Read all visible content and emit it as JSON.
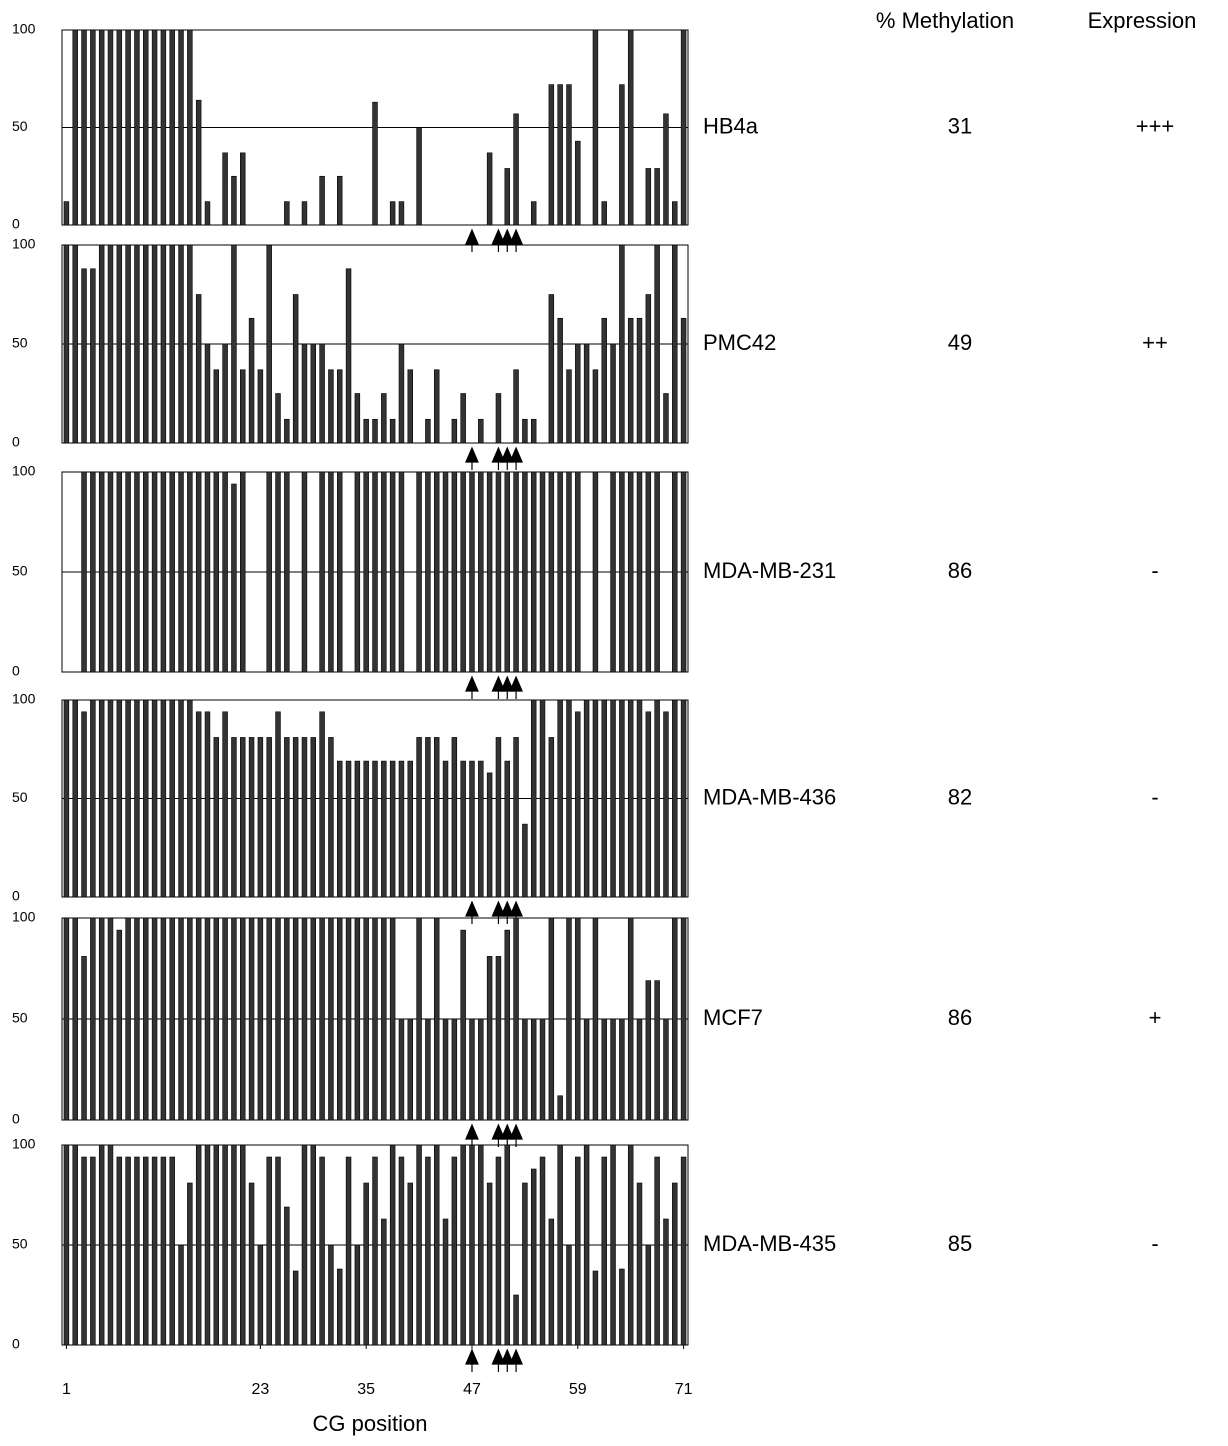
{
  "headers": {
    "methylation": "% Methylation",
    "expression": "Expression"
  },
  "chart_data": [
    {
      "type": "bar",
      "label": "HB4a",
      "methylation": 31,
      "expression": "+++",
      "x": [
        1,
        2,
        3,
        4,
        5,
        6,
        7,
        8,
        9,
        10,
        11,
        12,
        13,
        14,
        15,
        16,
        17,
        18,
        19,
        20,
        21,
        22,
        23,
        24,
        25,
        26,
        27,
        28,
        29,
        30,
        31,
        32,
        33,
        34,
        35,
        36,
        37,
        38,
        39,
        40,
        41,
        42,
        43,
        44,
        45,
        46,
        47,
        48,
        49,
        50,
        51,
        52,
        53,
        54,
        55,
        56,
        57,
        58,
        59,
        60,
        61,
        62,
        63,
        64,
        65,
        66,
        67,
        68,
        69,
        70,
        71
      ],
      "values": [
        12,
        100,
        100,
        100,
        100,
        100,
        100,
        100,
        100,
        100,
        100,
        100,
        100,
        100,
        100,
        64,
        12,
        0,
        37,
        25,
        37,
        0,
        0,
        0,
        0,
        12,
        0,
        12,
        0,
        25,
        0,
        25,
        0,
        0,
        0,
        63,
        0,
        12,
        12,
        0,
        50,
        0,
        0,
        0,
        0,
        0,
        0,
        0,
        37,
        0,
        29,
        57,
        0,
        12,
        0,
        72,
        72,
        72,
        43,
        0,
        100,
        12,
        0,
        72,
        100,
        0,
        29,
        29,
        57,
        12,
        100
      ],
      "color": "#333333",
      "xlim": [
        0.5,
        71.5
      ],
      "ylim": [
        0,
        100
      ],
      "yticks": [
        0,
        50,
        100
      ],
      "grid": true,
      "markers": [
        47,
        50,
        51,
        52
      ]
    },
    {
      "type": "bar",
      "label": "PMC42",
      "methylation": 49,
      "expression": "++",
      "x": [
        1,
        2,
        3,
        4,
        5,
        6,
        7,
        8,
        9,
        10,
        11,
        12,
        13,
        14,
        15,
        16,
        17,
        18,
        19,
        20,
        21,
        22,
        23,
        24,
        25,
        26,
        27,
        28,
        29,
        30,
        31,
        32,
        33,
        34,
        35,
        36,
        37,
        38,
        39,
        40,
        41,
        42,
        43,
        44,
        45,
        46,
        47,
        48,
        49,
        50,
        51,
        52,
        53,
        54,
        55,
        56,
        57,
        58,
        59,
        60,
        61,
        62,
        63,
        64,
        65,
        66,
        67,
        68,
        69,
        70,
        71
      ],
      "values": [
        100,
        100,
        88,
        88,
        100,
        100,
        100,
        100,
        100,
        100,
        100,
        100,
        100,
        100,
        100,
        75,
        50,
        37,
        50,
        100,
        37,
        63,
        37,
        100,
        25,
        12,
        75,
        50,
        50,
        50,
        37,
        37,
        88,
        25,
        12,
        12,
        25,
        12,
        50,
        37,
        0,
        12,
        37,
        0,
        12,
        25,
        0,
        12,
        0,
        25,
        0,
        37,
        12,
        12,
        0,
        75,
        63,
        37,
        50,
        50,
        37,
        63,
        50,
        100,
        63,
        63,
        75,
        100,
        25,
        100,
        63
      ],
      "color": "#333333",
      "xlim": [
        0.5,
        71.5
      ],
      "ylim": [
        0,
        100
      ],
      "yticks": [
        0,
        50,
        100
      ],
      "grid": true,
      "markers": [
        47,
        50,
        51,
        52
      ]
    },
    {
      "type": "bar",
      "label": "MDA-MB-231",
      "methylation": 86,
      "expression": "-",
      "x": [
        1,
        2,
        3,
        4,
        5,
        6,
        7,
        8,
        9,
        10,
        11,
        12,
        13,
        14,
        15,
        16,
        17,
        18,
        19,
        20,
        21,
        22,
        23,
        24,
        25,
        26,
        27,
        28,
        29,
        30,
        31,
        32,
        33,
        34,
        35,
        36,
        37,
        38,
        39,
        40,
        41,
        42,
        43,
        44,
        45,
        46,
        47,
        48,
        49,
        50,
        51,
        52,
        53,
        54,
        55,
        56,
        57,
        58,
        59,
        60,
        61,
        62,
        63,
        64,
        65,
        66,
        67,
        68,
        69,
        70,
        71
      ],
      "values": [
        0,
        0,
        100,
        100,
        100,
        100,
        100,
        100,
        100,
        100,
        100,
        100,
        100,
        100,
        100,
        100,
        100,
        100,
        100,
        94,
        100,
        0,
        0,
        100,
        100,
        100,
        0,
        100,
        0,
        100,
        100,
        100,
        0,
        100,
        100,
        100,
        100,
        100,
        100,
        0,
        100,
        100,
        100,
        100,
        100,
        100,
        100,
        100,
        100,
        100,
        100,
        100,
        100,
        100,
        100,
        100,
        100,
        100,
        100,
        0,
        100,
        0,
        100,
        100,
        100,
        100,
        100,
        100,
        0,
        100,
        100
      ],
      "color": "#333333",
      "xlim": [
        0.5,
        71.5
      ],
      "ylim": [
        0,
        100
      ],
      "yticks": [
        0,
        50,
        100
      ],
      "grid": true,
      "markers": [
        47,
        50,
        51,
        52
      ]
    },
    {
      "type": "bar",
      "label": "MDA-MB-436",
      "methylation": 82,
      "expression": "-",
      "x": [
        1,
        2,
        3,
        4,
        5,
        6,
        7,
        8,
        9,
        10,
        11,
        12,
        13,
        14,
        15,
        16,
        17,
        18,
        19,
        20,
        21,
        22,
        23,
        24,
        25,
        26,
        27,
        28,
        29,
        30,
        31,
        32,
        33,
        34,
        35,
        36,
        37,
        38,
        39,
        40,
        41,
        42,
        43,
        44,
        45,
        46,
        47,
        48,
        49,
        50,
        51,
        52,
        53,
        54,
        55,
        56,
        57,
        58,
        59,
        60,
        61,
        62,
        63,
        64,
        65,
        66,
        67,
        68,
        69,
        70,
        71
      ],
      "values": [
        100,
        100,
        94,
        100,
        100,
        100,
        100,
        100,
        100,
        100,
        100,
        100,
        100,
        100,
        100,
        94,
        94,
        81,
        94,
        81,
        81,
        81,
        81,
        81,
        94,
        81,
        81,
        81,
        81,
        94,
        81,
        69,
        69,
        69,
        69,
        69,
        69,
        69,
        69,
        69,
        81,
        81,
        81,
        69,
        81,
        69,
        69,
        69,
        63,
        81,
        69,
        81,
        37,
        100,
        100,
        81,
        100,
        100,
        94,
        100,
        100,
        100,
        100,
        100,
        100,
        100,
        94,
        100,
        94,
        100,
        100
      ],
      "color": "#333333",
      "xlim": [
        0.5,
        71.5
      ],
      "ylim": [
        0,
        100
      ],
      "yticks": [
        0,
        50,
        100
      ],
      "grid": true,
      "markers": [
        47,
        50,
        51,
        52
      ]
    },
    {
      "type": "bar",
      "label": "MCF7",
      "methylation": 86,
      "expression": "+",
      "x": [
        1,
        2,
        3,
        4,
        5,
        6,
        7,
        8,
        9,
        10,
        11,
        12,
        13,
        14,
        15,
        16,
        17,
        18,
        19,
        20,
        21,
        22,
        23,
        24,
        25,
        26,
        27,
        28,
        29,
        30,
        31,
        32,
        33,
        34,
        35,
        36,
        37,
        38,
        39,
        40,
        41,
        42,
        43,
        44,
        45,
        46,
        47,
        48,
        49,
        50,
        51,
        52,
        53,
        54,
        55,
        56,
        57,
        58,
        59,
        60,
        61,
        62,
        63,
        64,
        65,
        66,
        67,
        68,
        69,
        70,
        71
      ],
      "values": [
        100,
        100,
        81,
        100,
        100,
        100,
        94,
        100,
        100,
        100,
        100,
        100,
        100,
        100,
        100,
        100,
        100,
        100,
        100,
        100,
        100,
        100,
        100,
        100,
        100,
        100,
        100,
        100,
        100,
        100,
        100,
        100,
        100,
        100,
        100,
        100,
        100,
        100,
        50,
        50,
        100,
        50,
        100,
        50,
        50,
        94,
        50,
        50,
        81,
        81,
        94,
        100,
        50,
        50,
        50,
        100,
        12,
        100,
        100,
        50,
        100,
        50,
        50,
        50,
        100,
        50,
        69,
        69,
        50,
        100,
        100
      ],
      "color": "#333333",
      "xlim": [
        0.5,
        71.5
      ],
      "ylim": [
        0,
        100
      ],
      "yticks": [
        0,
        50,
        100
      ],
      "grid": true,
      "markers": [
        47,
        50,
        51,
        52
      ]
    },
    {
      "type": "bar",
      "label": "MDA-MB-435",
      "methylation": 85,
      "expression": "-",
      "x": [
        1,
        2,
        3,
        4,
        5,
        6,
        7,
        8,
        9,
        10,
        11,
        12,
        13,
        14,
        15,
        16,
        17,
        18,
        19,
        20,
        21,
        22,
        23,
        24,
        25,
        26,
        27,
        28,
        29,
        30,
        31,
        32,
        33,
        34,
        35,
        36,
        37,
        38,
        39,
        40,
        41,
        42,
        43,
        44,
        45,
        46,
        47,
        48,
        49,
        50,
        51,
        52,
        53,
        54,
        55,
        56,
        57,
        58,
        59,
        60,
        61,
        62,
        63,
        64,
        65,
        66,
        67,
        68,
        69,
        70,
        71
      ],
      "values": [
        100,
        100,
        94,
        94,
        100,
        100,
        94,
        94,
        94,
        94,
        94,
        94,
        94,
        50,
        81,
        100,
        100,
        100,
        100,
        100,
        100,
        81,
        50,
        94,
        94,
        69,
        37,
        100,
        100,
        94,
        50,
        38,
        94,
        50,
        81,
        94,
        63,
        100,
        94,
        81,
        100,
        94,
        100,
        63,
        94,
        100,
        100,
        100,
        81,
        94,
        100,
        25,
        81,
        88,
        94,
        63,
        100,
        50,
        94,
        100,
        37,
        94,
        100,
        38,
        100,
        81,
        50,
        94,
        63,
        81,
        94
      ],
      "color": "#333333",
      "xlim": [
        0.5,
        71.5
      ],
      "ylim": [
        0,
        100
      ],
      "yticks": [
        0,
        50,
        100
      ],
      "grid": true,
      "markers": [
        47,
        50,
        51,
        52
      ],
      "xticks": [
        1,
        23,
        35,
        47,
        59,
        71
      ],
      "xlabel": "CG position"
    }
  ]
}
